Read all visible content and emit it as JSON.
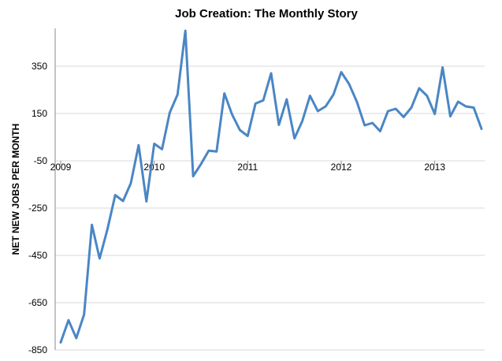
{
  "chart_data": {
    "type": "line",
    "title": "Job Creation: The Monthly Story",
    "xlabel": "",
    "ylabel": "NET NEW JOBS PER MONTH",
    "ylim": [
      -850,
      500
    ],
    "y_ticks": [
      350,
      150,
      -50,
      -250,
      -450,
      -650,
      -850
    ],
    "x_ticks": [
      {
        "label": "2009",
        "index": 0
      },
      {
        "label": "2010",
        "index": 12
      },
      {
        "label": "2011",
        "index": 24
      },
      {
        "label": "2012",
        "index": 36
      },
      {
        "label": "2013",
        "index": 48
      }
    ],
    "grid": true,
    "legend": "none",
    "color": "#4a86c5",
    "series": [
      {
        "values": [
          -818,
          -724,
          -800,
          -700,
          -321,
          -463,
          -340,
          -195,
          -220,
          -145,
          16,
          -222,
          22,
          -1,
          154,
          230,
          500,
          -115,
          -64,
          -7,
          -11,
          235,
          145,
          80,
          55,
          192,
          206,
          320,
          102,
          210,
          45,
          118,
          225,
          160,
          180,
          230,
          325,
          275,
          200,
          100,
          110,
          75,
          160,
          170,
          135,
          175,
          257,
          225,
          148,
          345,
          138,
          200,
          180,
          175,
          85
        ]
      }
    ]
  }
}
